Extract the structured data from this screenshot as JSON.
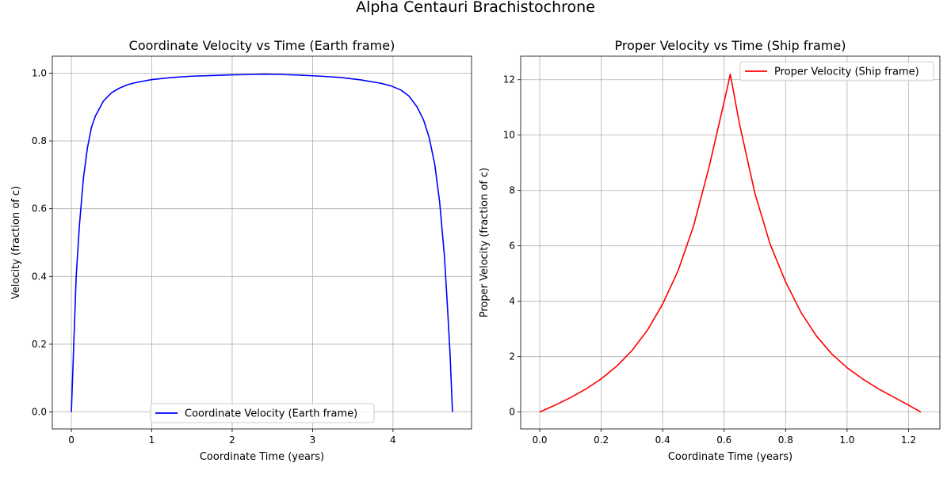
{
  "figure": {
    "title": "Alpha Centauri Brachistochrone"
  },
  "chart_data": [
    {
      "type": "line",
      "title": "Coordinate Velocity vs Time (Earth frame)",
      "xlabel": "Coordinate Time (years)",
      "ylabel": "Velocity (fraction of c)",
      "xlim": [
        -0.237,
        4.977
      ],
      "ylim": [
        -0.05,
        1.05
      ],
      "xticks": [
        0,
        1,
        2,
        3,
        4
      ],
      "yticks": [
        0.0,
        0.2,
        0.4,
        0.6,
        0.8,
        1.0
      ],
      "xtick_labels": [
        "0",
        "1",
        "2",
        "3",
        "4"
      ],
      "ytick_labels": [
        "0.0",
        "0.2",
        "0.4",
        "0.6",
        "0.8",
        "1.0"
      ],
      "grid": true,
      "legend_position": "lower-center",
      "series": [
        {
          "name": "Coordinate Velocity (Earth frame)",
          "color": "#0000ff",
          "x": [
            0.0,
            0.03,
            0.06,
            0.1,
            0.15,
            0.2,
            0.25,
            0.3,
            0.4,
            0.5,
            0.6,
            0.7,
            0.8,
            1.0,
            1.25,
            1.5,
            1.75,
            2.0,
            2.25,
            2.4,
            2.6,
            2.85,
            3.1,
            3.35,
            3.6,
            3.85,
            3.98,
            4.1,
            4.2,
            4.3,
            4.38,
            4.45,
            4.52,
            4.58,
            4.64,
            4.68,
            4.71,
            4.74
          ],
          "y": [
            0.0,
            0.2,
            0.4,
            0.55,
            0.69,
            0.78,
            0.84,
            0.874,
            0.918,
            0.942,
            0.956,
            0.966,
            0.972,
            0.981,
            0.987,
            0.991,
            0.993,
            0.995,
            0.996,
            0.997,
            0.996,
            0.994,
            0.991,
            0.987,
            0.98,
            0.97,
            0.962,
            0.95,
            0.932,
            0.9,
            0.862,
            0.81,
            0.73,
            0.62,
            0.46,
            0.3,
            0.17,
            0.0
          ]
        }
      ]
    },
    {
      "type": "line",
      "title": "Proper Velocity vs Time (Ship frame)",
      "xlabel": "Coordinate Time (years)",
      "ylabel": "Proper Velocity (fraction of c)",
      "xlim": [
        -0.062,
        1.302
      ],
      "ylim": [
        -0.61,
        12.85
      ],
      "xticks": [
        0.0,
        0.2,
        0.4,
        0.6,
        0.8,
        1.0,
        1.2
      ],
      "yticks": [
        0,
        2,
        4,
        6,
        8,
        10,
        12
      ],
      "xtick_labels": [
        "0.0",
        "0.2",
        "0.4",
        "0.6",
        "0.8",
        "1.0",
        "1.2"
      ],
      "ytick_labels": [
        "0",
        "2",
        "4",
        "6",
        "8",
        "10",
        "12"
      ],
      "grid": true,
      "legend_position": "upper-right",
      "series": [
        {
          "name": "Proper Velocity (Ship frame)",
          "color": "#ff0000",
          "x": [
            0.0,
            0.05,
            0.1,
            0.15,
            0.2,
            0.25,
            0.3,
            0.35,
            0.4,
            0.45,
            0.5,
            0.55,
            0.6,
            0.62,
            0.65,
            0.7,
            0.75,
            0.8,
            0.85,
            0.9,
            0.95,
            1.0,
            1.05,
            1.1,
            1.15,
            1.2,
            1.24
          ],
          "y": [
            0.0,
            0.25,
            0.52,
            0.83,
            1.2,
            1.65,
            2.22,
            2.95,
            3.9,
            5.1,
            6.7,
            8.8,
            11.2,
            12.2,
            10.4,
            7.9,
            6.05,
            4.7,
            3.6,
            2.75,
            2.1,
            1.6,
            1.2,
            0.85,
            0.55,
            0.25,
            0.0
          ]
        }
      ]
    }
  ]
}
